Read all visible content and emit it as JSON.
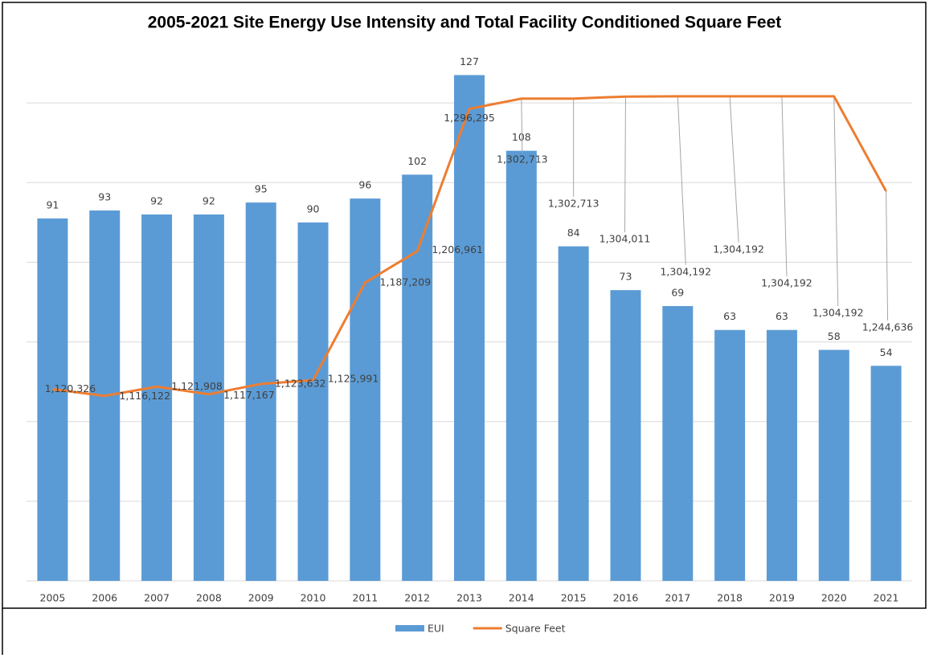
{
  "chart_data": {
    "type": "bar_line",
    "title": "2005-2021 Site Energy Use Intensity and Total Facility Conditioned Square Feet",
    "categories": [
      "2005",
      "2006",
      "2007",
      "2008",
      "2009",
      "2010",
      "2011",
      "2012",
      "2013",
      "2014",
      "2015",
      "2016",
      "2017",
      "2018",
      "2019",
      "2020",
      "2021"
    ],
    "series": [
      {
        "name": "EUI",
        "type": "bar",
        "color": "#5b9bd5",
        "axis": "y",
        "values": [
          91,
          93,
          92,
          92,
          95,
          90,
          96,
          102,
          127,
          108,
          84,
          73,
          69,
          63,
          63,
          58,
          54
        ]
      },
      {
        "name": "Square Feet",
        "type": "line",
        "color": "#ed7d31",
        "axis": "y2",
        "values": [
          1120326,
          1116122,
          1121908,
          1117167,
          1123632,
          1125991,
          1187209,
          1206961,
          1296295,
          1302713,
          1302713,
          1304011,
          1304192,
          1304192,
          1304192,
          1304192,
          1244636
        ],
        "value_labels": [
          "1,120,326",
          "1,116,122",
          "1,121,908",
          "1,117,167",
          "1,123,632",
          "1,125,991",
          "1,187,209",
          "1,206,961",
          "1,296,295",
          "1,302,713",
          "1,302,713",
          "1,304,011",
          "1,304,192",
          "1,304,192",
          "1,304,192",
          "1,304,192",
          "1,244,636"
        ]
      }
    ],
    "ylim": [
      0,
      140
    ],
    "yticks": [
      0,
      20,
      40,
      60,
      80,
      100,
      120
    ],
    "y2lim": [
      1000000,
      1350000
    ],
    "ytick_labels": false,
    "grid": true,
    "legend": "bottom"
  }
}
